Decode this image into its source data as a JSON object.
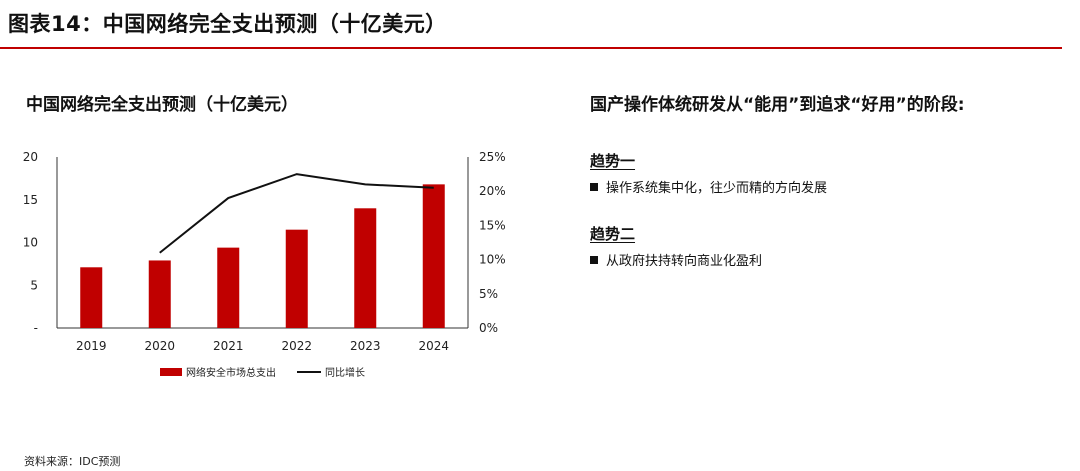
{
  "figure_title": "图表14：中国网络完全支出预测（十亿美元）",
  "chart_title": "中国网络完全支出预测（十亿美元）",
  "chart_data": {
    "type": "bar",
    "categories": [
      "2019",
      "2020",
      "2021",
      "2022",
      "2023",
      "2024"
    ],
    "series": [
      {
        "name": "网络安全市场总支出",
        "type": "bar",
        "axis": "left",
        "color": "#c00000",
        "values": [
          7.1,
          7.9,
          9.4,
          11.5,
          14.0,
          16.8
        ]
      },
      {
        "name": "同比增长",
        "type": "line",
        "axis": "right",
        "color": "#111111",
        "values": [
          null,
          0.11,
          0.19,
          0.225,
          0.21,
          0.205
        ]
      }
    ],
    "left_axis": {
      "min": 0,
      "max": 20,
      "ticks": [
        "-",
        "5",
        "10",
        "15",
        "20"
      ]
    },
    "right_axis": {
      "min": 0,
      "max": 0.25,
      "ticks": [
        "0%",
        "5%",
        "10%",
        "15%",
        "20%",
        "25%"
      ]
    },
    "legend_position": "bottom",
    "grid": false
  },
  "side": {
    "title": "国产操作体统研发从“能用”到追求“好用”的阶段:",
    "trends": [
      {
        "heading": "趋势一",
        "item": "操作系统集中化，往少而精的方向发展"
      },
      {
        "heading": "趋势二",
        "item": "从政府扶持转向商业化盈利"
      }
    ]
  },
  "source": "资料来源：IDC预测"
}
